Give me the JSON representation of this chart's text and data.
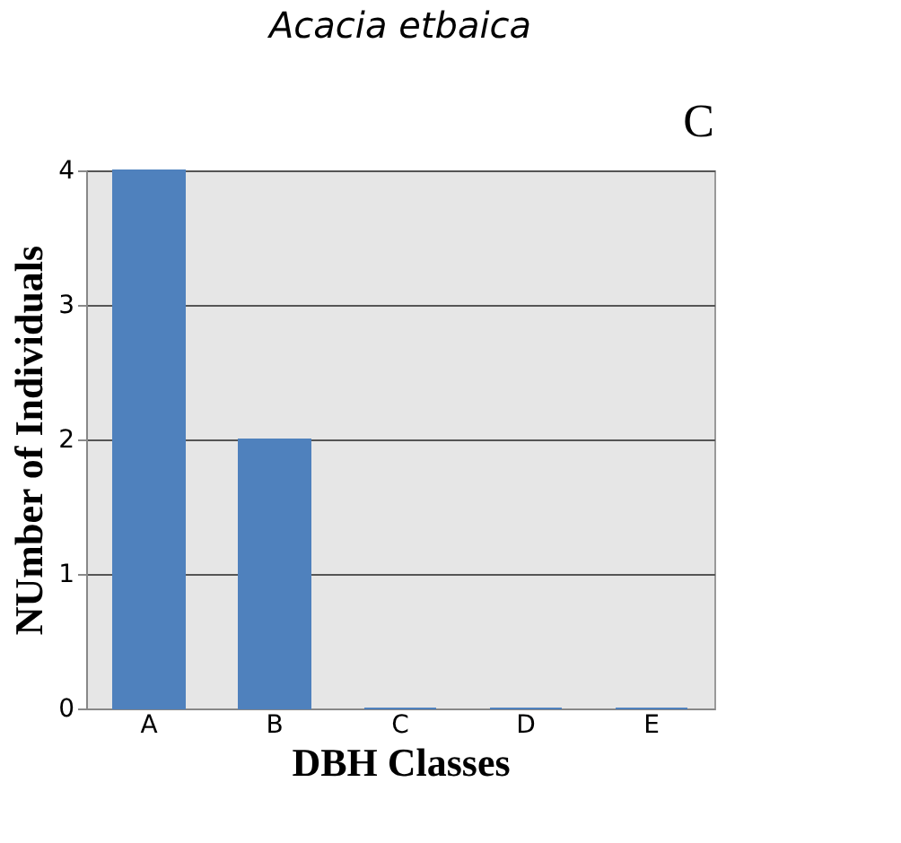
{
  "chart_data": {
    "type": "bar",
    "title": "Acacia etbaica",
    "xlabel": "DBH Classes",
    "ylabel": "NUmber of Individuals",
    "categories": [
      "A",
      "B",
      "C",
      "D",
      "E"
    ],
    "values": [
      4,
      2,
      0,
      0,
      0
    ],
    "color": "#4f81bd",
    "ylim": [
      0,
      4
    ],
    "yticks": [
      0,
      1,
      2,
      3,
      4
    ],
    "grid": "y",
    "annotations": [
      "C"
    ]
  }
}
